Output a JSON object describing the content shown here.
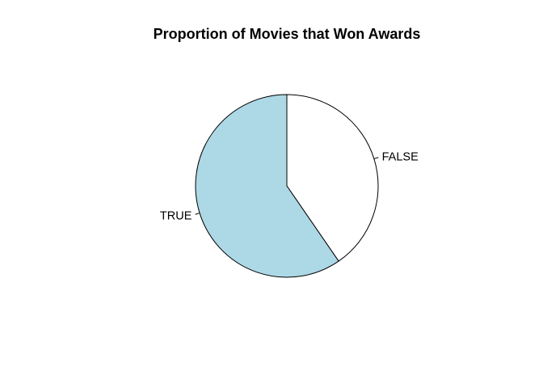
{
  "chart_data": {
    "type": "pie",
    "title": "Proportion of Movies that Won Awards",
    "slices": [
      {
        "label": "FALSE",
        "value": 0.404,
        "color": "#ffffff"
      },
      {
        "label": "TRUE",
        "value": 0.596,
        "color": "#add8e6"
      }
    ],
    "start_angle_deg": 90,
    "direction": "clockwise",
    "border_color": "#000000"
  }
}
